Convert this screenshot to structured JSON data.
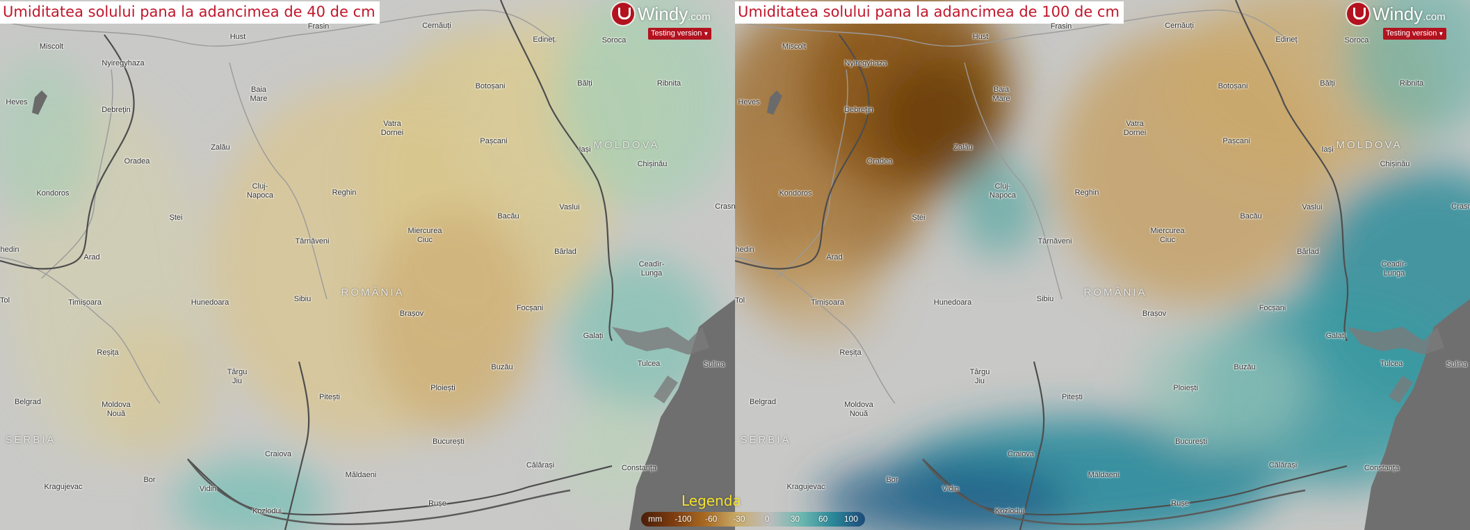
{
  "panels": [
    {
      "title": "Umiditatea solului pana la adancimea de 40 de cm",
      "logo_text": "Windy",
      "logo_suffix": ".com",
      "testing_label": "Testing version"
    },
    {
      "title": "Umiditatea solului pana la adancimea de 100 de cm",
      "logo_text": "Windy",
      "logo_suffix": ".com",
      "testing_label": "Testing version"
    }
  ],
  "cities": [
    {
      "name": "Hust"
    },
    {
      "name": "Frasin"
    },
    {
      "name": "Cernăuți"
    },
    {
      "name": "Edineț"
    },
    {
      "name": "Soroca"
    },
    {
      "name": "Miscolt"
    },
    {
      "name": "Nyiregyhaza"
    },
    {
      "name": "Heves"
    },
    {
      "name": "Baia\nMare"
    },
    {
      "name": "Botoșani"
    },
    {
      "name": "Bălți"
    },
    {
      "name": "Ribnita"
    },
    {
      "name": "Debreţin"
    },
    {
      "name": "Vatra\nDornei"
    },
    {
      "name": "Zalău"
    },
    {
      "name": "Pașcani"
    },
    {
      "name": "Iași"
    },
    {
      "name": "Oradea"
    },
    {
      "name": "Chișinău"
    },
    {
      "name": "Kondoros"
    },
    {
      "name": "Cluj-\nNapoca"
    },
    {
      "name": "Reghin"
    },
    {
      "name": "Vaslui"
    },
    {
      "name": "Crasne"
    },
    {
      "name": "Ștei"
    },
    {
      "name": "Bacău"
    },
    {
      "name": "Miercurea\nCiuc"
    },
    {
      "name": "Târnăveni"
    },
    {
      "name": "Bârlad"
    },
    {
      "name": "hedin"
    },
    {
      "name": "Arad"
    },
    {
      "name": "Ceadîr-\nLunga"
    },
    {
      "name": "Timișoara"
    },
    {
      "name": "Hunedoara"
    },
    {
      "name": "Sibiu"
    },
    {
      "name": "Brașov"
    },
    {
      "name": "Focșani"
    },
    {
      "name": "Tol"
    },
    {
      "name": "Galați"
    },
    {
      "name": "Tulcea"
    },
    {
      "name": "Reșița"
    },
    {
      "name": "Buzău"
    },
    {
      "name": "Sulina"
    },
    {
      "name": "Târgu\nJiu"
    },
    {
      "name": "Pitești"
    },
    {
      "name": "Ploiești"
    },
    {
      "name": "Belgrad"
    },
    {
      "name": "Moldova\nNouă"
    },
    {
      "name": "București"
    },
    {
      "name": "Craiova"
    },
    {
      "name": "Călărași"
    },
    {
      "name": "Constanța"
    },
    {
      "name": "Măldaeni"
    },
    {
      "name": "Bor"
    },
    {
      "name": "Kragujevac"
    },
    {
      "name": "Vidin"
    },
    {
      "name": "Rușe"
    },
    {
      "name": "Kozlodui"
    }
  ],
  "countries": [
    {
      "name": "MOLDOVA"
    },
    {
      "name": "ROMÂNIA"
    },
    {
      "name": "SERBIA"
    }
  ],
  "legend": {
    "title": "Legenda",
    "unit": "mm",
    "ticks": [
      "-100",
      "-60",
      "-30",
      "0",
      "30",
      "60",
      "100"
    ],
    "colors": [
      "#4a1e08",
      "#7d3c10",
      "#a86a22",
      "#c9ab6a",
      "#bdbdbd",
      "#6db8b0",
      "#2a8799",
      "#1e4a7a"
    ]
  }
}
